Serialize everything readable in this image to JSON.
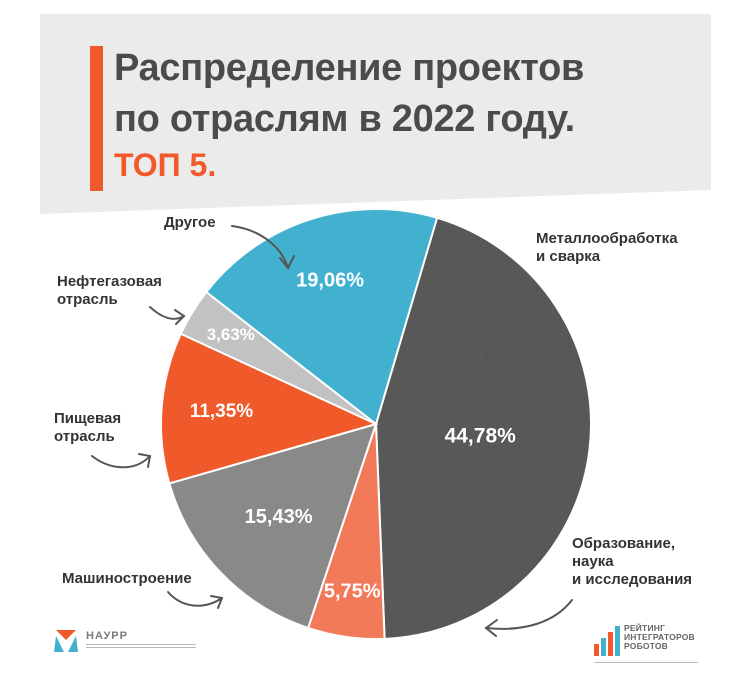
{
  "header": {
    "title_line1": "Распределение проектов",
    "title_line2": "по отраслям в 2022 году.",
    "subtitle": "ТОП 5."
  },
  "logos": {
    "naurr": {
      "name": "НАУРР"
    },
    "rating": {
      "name": "РЕЙТИНГ\nИНТЕГРАТОРОВ\nРОБОТОВ"
    }
  },
  "chart_data": {
    "type": "pie",
    "title": "Распределение проектов по отраслям в 2022 году.",
    "subtitle": "ТОП 5.",
    "start_angle_deg": 16.5,
    "direction": "clockwise",
    "slices": [
      {
        "label": "Металлообработка\nи сварка",
        "value": 44.78,
        "display": "44,78%",
        "color": "#585858"
      },
      {
        "label": "Образование,\nнаука\nи исследования",
        "value": 5.75,
        "display": "5,75%",
        "color": "#f37a59"
      },
      {
        "label": "Машиностроение",
        "value": 15.43,
        "display": "15,43%",
        "color": "#898989"
      },
      {
        "label": "Пищевая\nотрасль",
        "value": 11.35,
        "display": "11,35%",
        "color": "#f05a2a"
      },
      {
        "label": "Нефтегазовая\nотрасль",
        "value": 3.63,
        "display": "3,63%",
        "color": "#c2c2c2"
      },
      {
        "label": "Другое",
        "value": 19.06,
        "display": "19,06%",
        "color": "#42b1cf"
      }
    ]
  }
}
